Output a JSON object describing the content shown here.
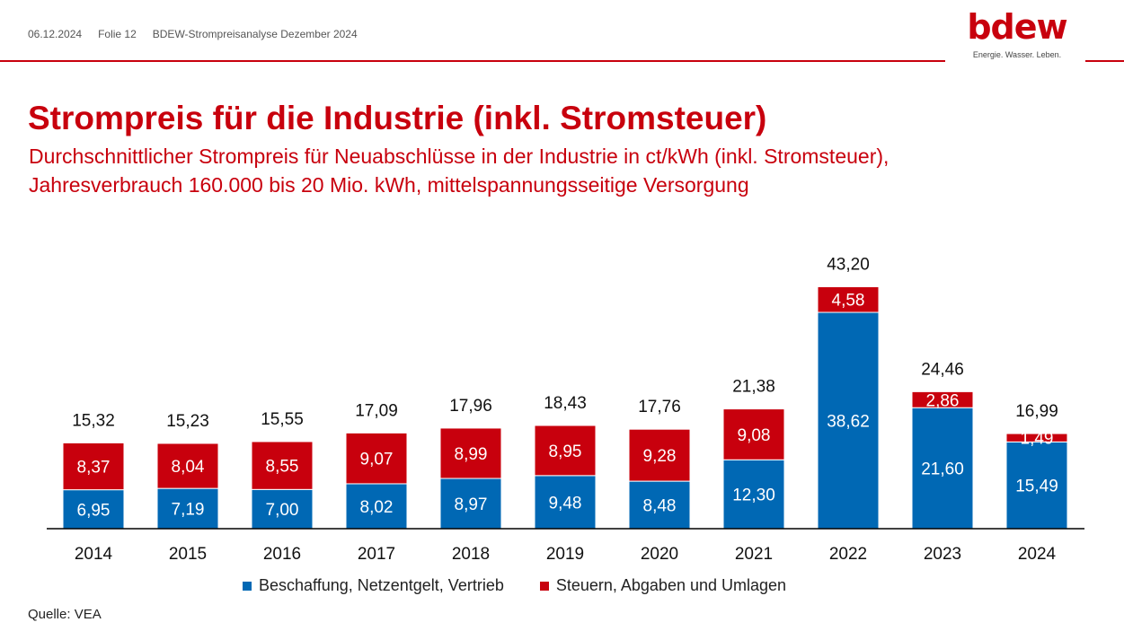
{
  "header": {
    "date": "06.12.2024",
    "slide": "Folie 12",
    "doc_title": "BDEW-Strompreisanalyse Dezember 2024"
  },
  "logo": {
    "word": "bdew",
    "tagline": "Energie. Wasser. Leben."
  },
  "title": "Strompreis für die Industrie (inkl. Stromsteuer)",
  "subtitle": {
    "line1": "Durchschnittlicher Strompreis für Neuabschlüsse in der Industrie in ct/kWh (inkl. Stromsteuer),",
    "line2": "Jahresverbrauch 160.000 bis 20 Mio. kWh, mittelspannungsseitige Versorgung"
  },
  "source": "Quelle: VEA",
  "colors": {
    "blue": "#0068b4",
    "red": "#c8000d"
  },
  "chart_data": {
    "type": "bar",
    "stacked": true,
    "categories": [
      "2014",
      "2015",
      "2016",
      "2017",
      "2018",
      "2019",
      "2020",
      "2021",
      "2022",
      "2023",
      "2024"
    ],
    "series": [
      {
        "name": "Beschaffung, Netzentgelt, Vertrieb",
        "color": "#0068b4",
        "values": [
          6.95,
          7.19,
          7.0,
          8.02,
          8.97,
          9.48,
          8.48,
          12.3,
          38.62,
          21.6,
          15.49
        ],
        "labels": [
          "6,95",
          "7,19",
          "7,00",
          "8,02",
          "8,97",
          "9,48",
          "8,48",
          "12,30",
          "38,62",
          "21,60",
          "15,49"
        ]
      },
      {
        "name": "Steuern, Abgaben und Umlagen",
        "color": "#c8000d",
        "values": [
          8.37,
          8.04,
          8.55,
          9.07,
          8.99,
          8.95,
          9.28,
          9.08,
          4.58,
          2.86,
          1.49
        ],
        "labels": [
          "8,37",
          "8,04",
          "8,55",
          "9,07",
          "8,99",
          "8,95",
          "9,28",
          "9,08",
          "4,58",
          "2,86",
          "1,49"
        ]
      }
    ],
    "totals": [
      15.32,
      15.23,
      15.55,
      17.09,
      17.96,
      18.43,
      17.76,
      21.38,
      43.2,
      24.46,
      16.99
    ],
    "total_labels": [
      "15,32",
      "15,23",
      "15,55",
      "17,09",
      "17,96",
      "18,43",
      "17,76",
      "21,38",
      "43,20",
      "24,46",
      "16,99"
    ],
    "ylim": [
      0,
      45
    ],
    "legend_position": "bottom",
    "grid": false
  }
}
